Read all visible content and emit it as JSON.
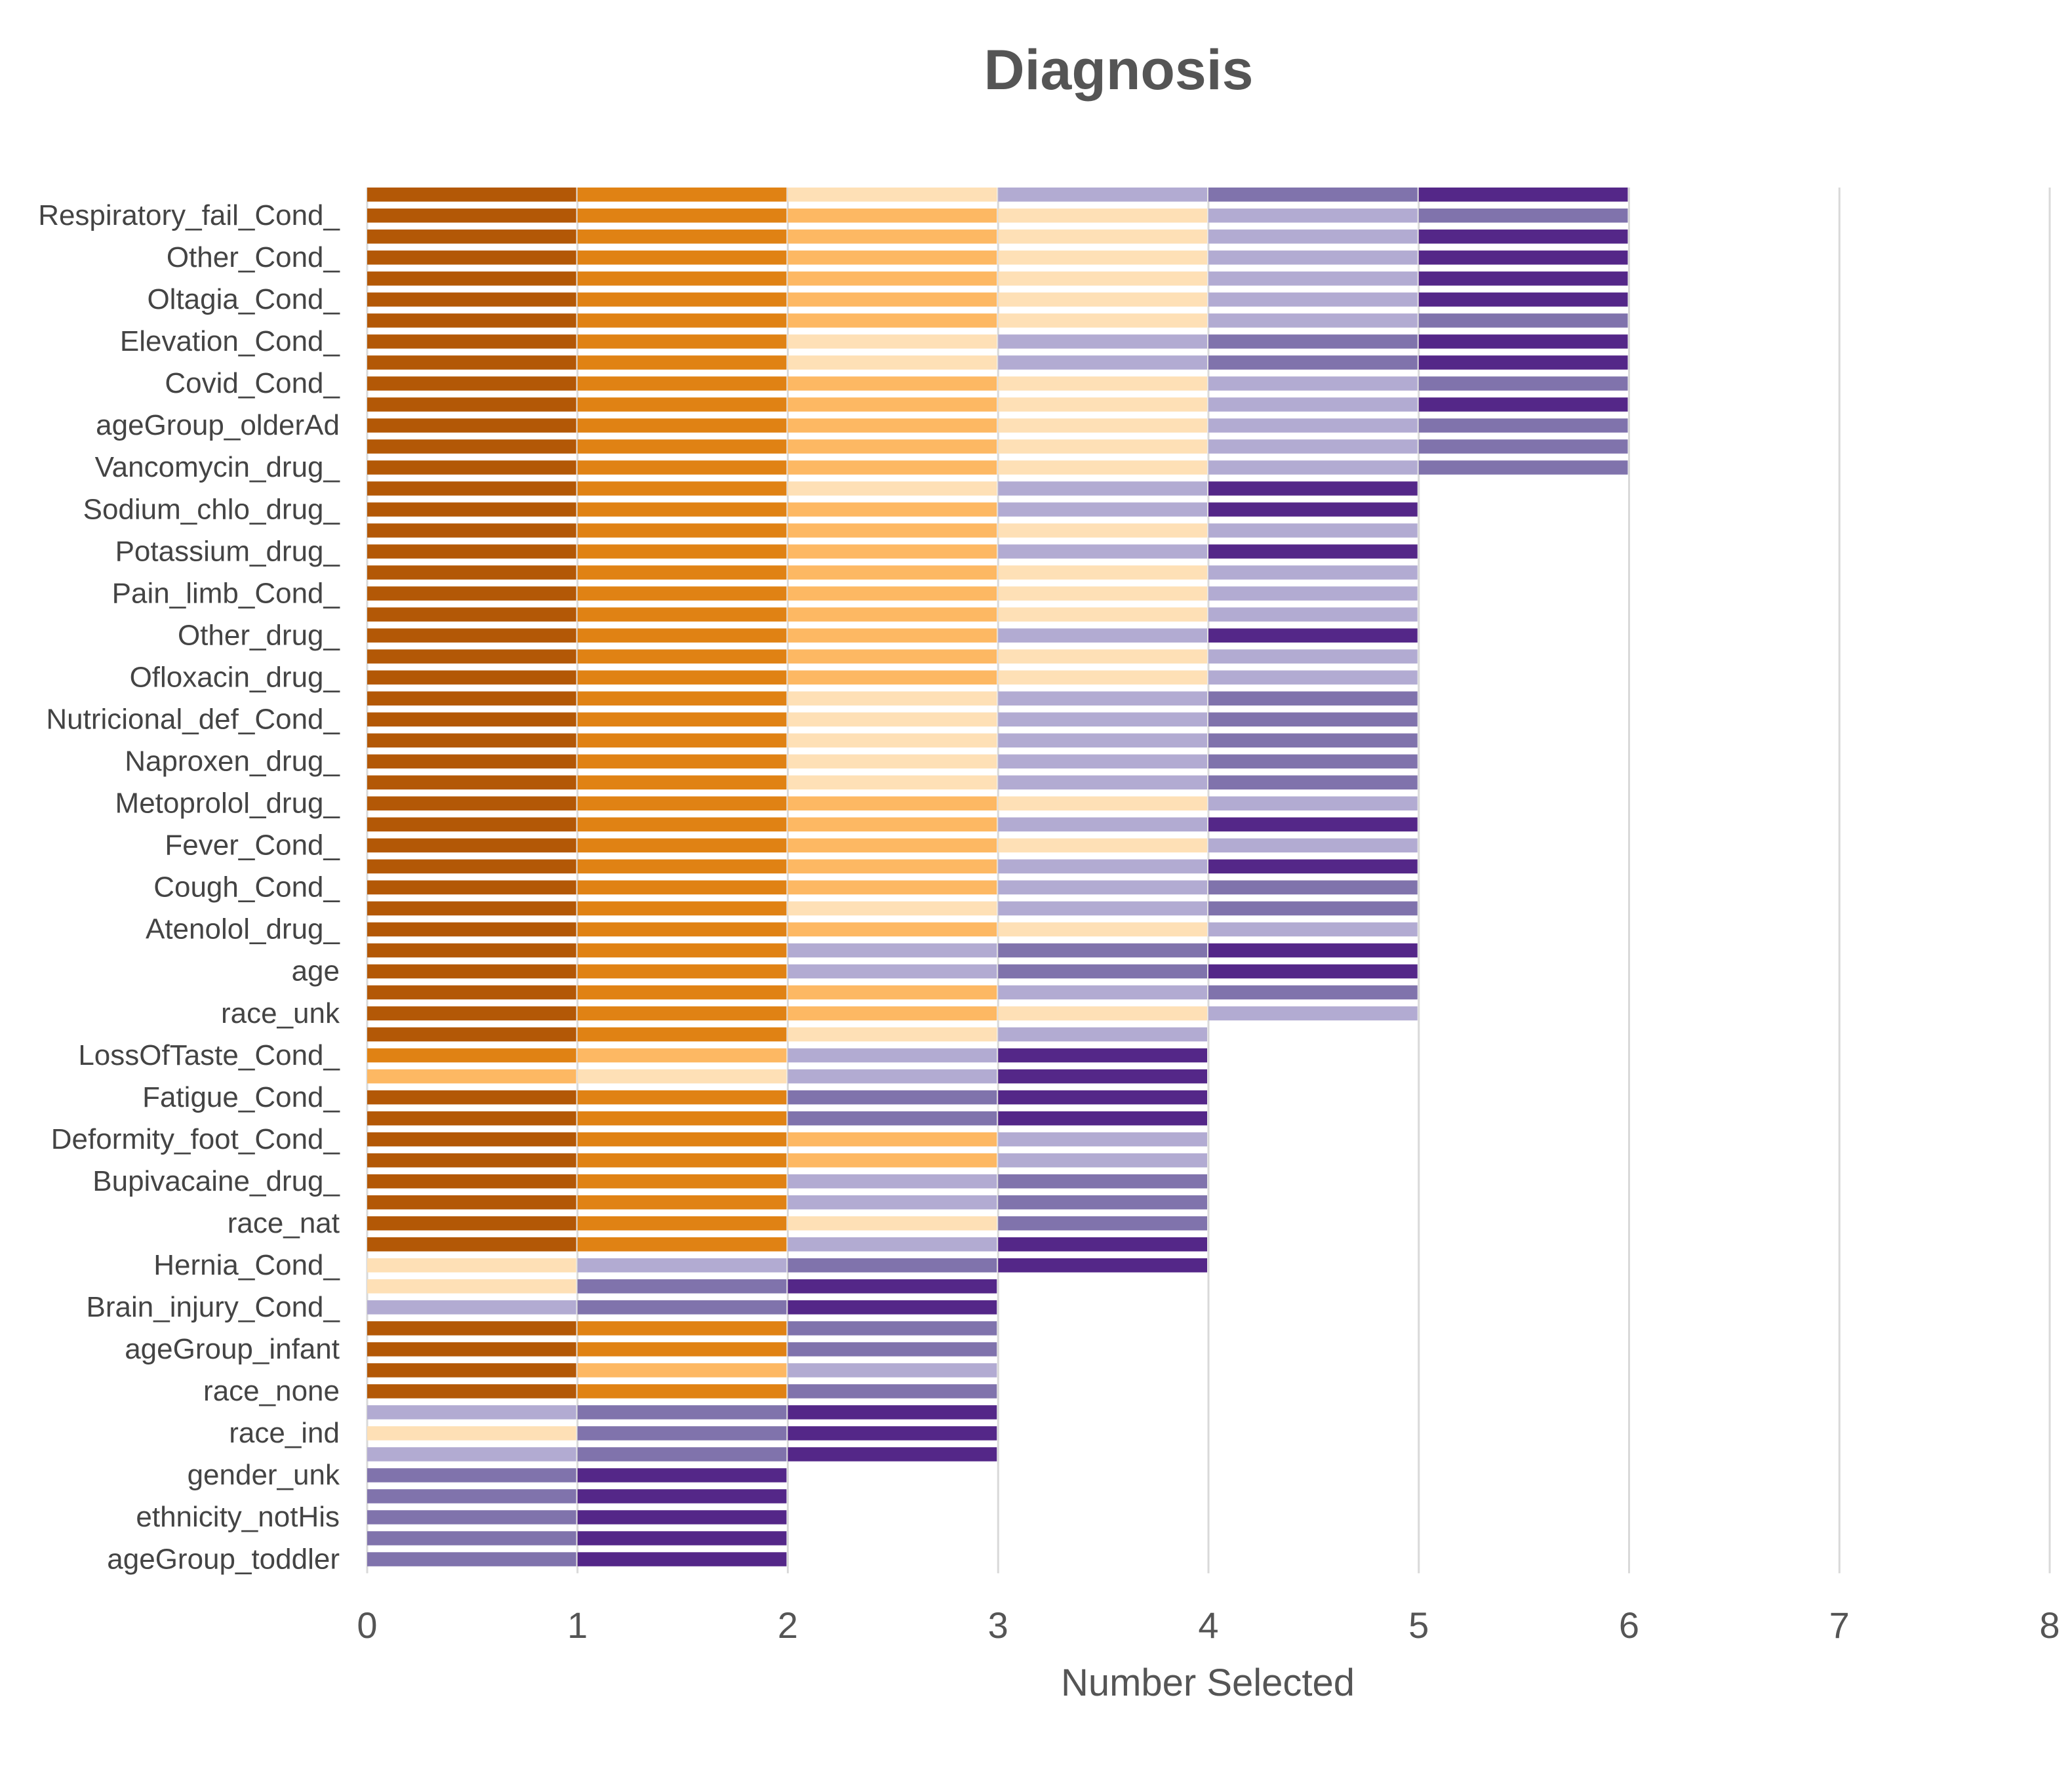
{
  "chart_data": {
    "type": "bar",
    "orientation": "horizontal-stacked",
    "title": "Diagnosis",
    "xlabel": "Number Selected",
    "ylabel": "",
    "xlim": [
      0,
      8
    ],
    "xticks": [
      0,
      1,
      2,
      3,
      4,
      5,
      6,
      7,
      8
    ],
    "grid": "vertical",
    "legend": "none",
    "palette": {
      "D": "#b35806",
      "O": "#e08214",
      "L": "#fdb863",
      "P": "#fee0b6",
      "V": "#b2abd2",
      "M": "#8073ac",
      "K": "#542788"
    },
    "category_labels": [
      "Respiratory_fail_Cond_",
      "Other_Cond_",
      "Oltagia_Cond_",
      "Elevation_Cond_",
      "Covid_Cond_",
      "ageGroup_olderAd",
      "Vancomycin_drug_",
      "Sodium_chlo_drug_",
      "Potassium_drug_",
      "Pain_limb_Cond_",
      "Other_drug_",
      "Ofloxacin_drug_",
      "Nutricional_def_Cond_",
      "Naproxen_drug_",
      "Metoprolol_drug_",
      "Fever_Cond_",
      "Cough_Cond_",
      "Atenolol_drug_",
      "age",
      "race_unk",
      "LossOfTaste_Cond_",
      "Fatigue_Cond_",
      "Deformity_foot_Cond_",
      "Bupivacaine_drug_",
      "race_nat",
      "Hernia_Cond_",
      "Brain_injury_Cond_",
      "ageGroup_infant",
      "race_none",
      "race_ind",
      "gender_unk",
      "ethnicity_notHis",
      "ageGroup_toddler"
    ],
    "rows": [
      "DOPVMK",
      "DOLPVM",
      "DOLPVK",
      "DOLPVK",
      "DOLPVK",
      "DOLPVK",
      "DOLPVM",
      "DOPVMK",
      "DOPVMK",
      "DOLPVM",
      "DOLPVK",
      "DOLPVM",
      "DOLPVM",
      "DOLPVM",
      "DOPVK",
      "DOLVK",
      "DOLPV",
      "DOLVK",
      "DOLPV",
      "DOLPV",
      "DOLPV",
      "DOLVK",
      "DOLPV",
      "DOLPV",
      "DOPVM",
      "DOPVM",
      "DOPVM",
      "DOPVM",
      "DOPVM",
      "DOLPV",
      "DOLVK",
      "DOLPV",
      "DOLVK",
      "DOLVM",
      "DOPVM",
      "DOLPV",
      "DOVMK",
      "DOVMK",
      "DOLVM",
      "DOLPV",
      "DOPV",
      "OLVK",
      "LPVK",
      "DOMK",
      "DOMK",
      "DOLV",
      "DOLV",
      "DOVM",
      "DOVM",
      "DOPM",
      "DOVK",
      "PVMK",
      "PMK",
      "VMK",
      "DOM",
      "DOM",
      "DLV",
      "DOM",
      "VMK",
      "PMK",
      "VMK",
      "MK",
      "MK",
      "MK",
      "MK",
      "MK",
      "MK",
      "MK",
      "MK",
      "MK",
      "MK",
      "MK",
      "MK",
      "MK",
      "MK",
      "MK",
      "MK",
      "MK",
      "MK",
      "MK",
      "MK",
      "MK",
      "MK",
      "MK",
      "MK",
      "MK",
      "MK",
      "MK",
      "MK",
      "MK",
      "MK",
      "MK",
      "MK",
      "MK",
      "MK",
      "MK",
      "MK",
      "MK",
      "MK",
      "MK",
      "MK",
      "MK",
      "MK",
      "VK",
      "MK",
      "VK",
      "MK",
      "VK",
      "VK",
      "MK",
      "VK",
      "MK",
      "VK",
      "MK",
      "MK",
      "VK",
      "VK",
      "MK",
      "VK",
      "MK",
      "MK",
      "VK",
      "MK",
      "MK",
      "VK",
      "VK",
      "MK",
      "VK",
      "MK",
      "VK",
      "MK",
      "VK",
      "VK",
      "MK",
      "VK",
      "MK",
      "MK",
      "VK",
      "MK",
      "MK",
      "VK",
      "VK",
      "MK",
      "VK",
      "MK",
      "VK",
      "MK",
      "VK",
      "VK",
      "MK",
      "VK",
      "MK",
      "VK",
      "MK",
      "MK",
      "VK",
      "VK",
      "MK",
      "VK",
      "MK",
      "MK",
      "VK",
      "MK",
      "MK",
      "VK",
      "VK",
      "MK",
      "VK",
      "MK",
      "VK",
      "MK",
      "VK",
      "VK",
      "MK",
      "VK",
      "MK",
      "VK",
      "MK",
      "MK",
      "VK",
      "VK",
      "MK",
      "VK",
      "MK",
      "MK",
      "VK",
      "MK",
      "MK",
      "VK",
      "VK",
      "MK",
      "VK",
      "MK",
      "VK",
      "MK",
      "VK",
      "VK",
      "MK",
      "VK",
      "MK",
      "VK",
      "MK",
      "MK",
      "VK",
      "VK",
      "MK",
      "VK",
      "MK",
      "MK",
      "VK",
      "MK",
      "MK",
      "VK",
      "VK",
      "MK",
      "VK",
      "MK",
      "VK",
      "MK",
      "VK",
      "VK",
      "MK",
      "VK",
      "MK"
    ]
  }
}
